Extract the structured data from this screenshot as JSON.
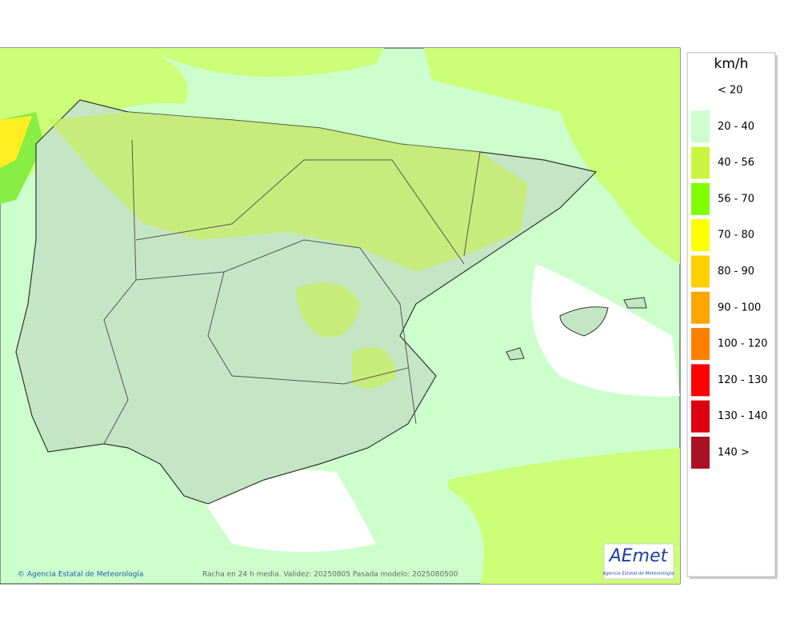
{
  "legend": {
    "title": "km/h",
    "items": [
      {
        "label": "< 20",
        "color": "#ffffff"
      },
      {
        "label": "20 - 40",
        "color": "#ccffcc"
      },
      {
        "label": "40 - 56",
        "color": "#c8f542"
      },
      {
        "label": "56 - 70",
        "color": "#80ff00"
      },
      {
        "label": "70 - 80",
        "color": "#ffff00"
      },
      {
        "label": "80 - 90",
        "color": "#ffd000"
      },
      {
        "label": "90 - 100",
        "color": "#ffa500"
      },
      {
        "label": "100 - 120",
        "color": "#ff8000"
      },
      {
        "label": "120 - 130",
        "color": "#ff0000"
      },
      {
        "label": "130 - 140",
        "color": "#dd0011"
      },
      {
        "label": "140 >",
        "color": "#aa1122"
      }
    ]
  },
  "footer": {
    "copyright": "© Agencia Estatal de Meteorología",
    "caption": "Racha en 24 h media. Validez: 20250805 Pasada modelo: 2025080500"
  },
  "logo": {
    "name": "AEmet",
    "subtitle": "Agencia Estatal de Meteorología"
  }
}
